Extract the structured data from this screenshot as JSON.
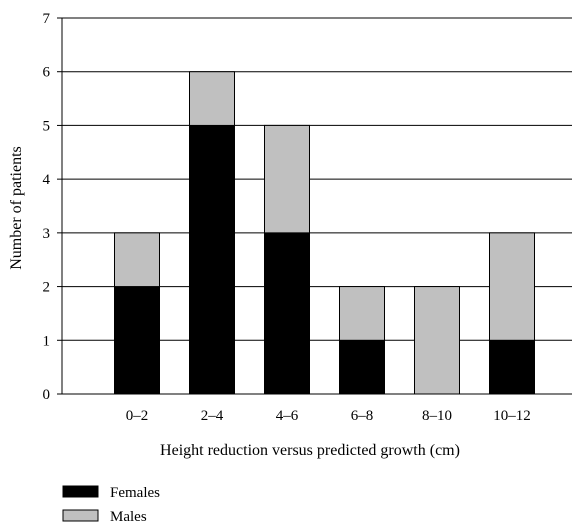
{
  "chart_data": {
    "type": "bar",
    "stacked": true,
    "categories": [
      "0–2",
      "2–4",
      "4–6",
      "6–8",
      "8–10",
      "10–12"
    ],
    "series": [
      {
        "name": "Females",
        "values": [
          2,
          5,
          3,
          1,
          0,
          1
        ],
        "color": "#000000"
      },
      {
        "name": "Males",
        "values": [
          1,
          1,
          2,
          1,
          2,
          2
        ],
        "color": "#c0c0c0"
      }
    ],
    "xlabel": "Height reduction versus predicted growth (cm)",
    "ylabel": "Number of patients",
    "ylim": [
      0,
      7
    ],
    "yticks": [
      "0",
      "1",
      "2",
      "3",
      "4",
      "5",
      "6",
      "7"
    ],
    "grid": "horizontal",
    "legend_position": "bottom-left"
  }
}
